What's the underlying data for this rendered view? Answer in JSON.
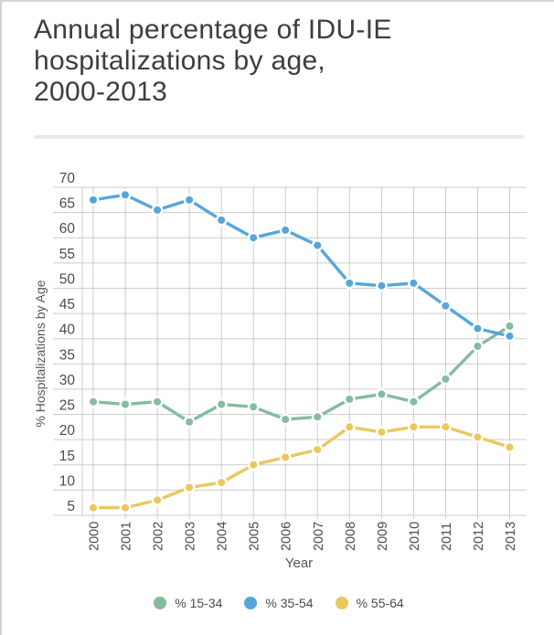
{
  "page": {
    "title_line1": "Annual percentage of IDU-IE",
    "title_line2": "hospitalizations by age,",
    "title_line3": "2000-2013"
  },
  "chart_data": {
    "type": "line",
    "title": "Annual percentage of IDU-IE hospitalizations by age, 2000-2013",
    "x": [
      2000,
      2001,
      2002,
      2003,
      2004,
      2005,
      2006,
      2007,
      2008,
      2009,
      2010,
      2011,
      2012,
      2013
    ],
    "series": [
      {
        "name": "% 15-34",
        "color": "#83BD9E",
        "values": [
          27.5,
          27,
          27.5,
          23.5,
          27,
          26.5,
          24,
          24.5,
          28,
          29,
          27.5,
          32,
          38.5,
          42.5
        ]
      },
      {
        "name": "% 35-54",
        "color": "#56A6DB",
        "values": [
          67.5,
          68.5,
          65.5,
          67.5,
          63.5,
          60,
          61.5,
          58.5,
          51,
          50.5,
          51,
          46.5,
          42,
          40.5
        ]
      },
      {
        "name": "% 55-64",
        "color": "#EBC75F",
        "values": [
          6.5,
          6.5,
          8,
          10.5,
          11.5,
          15,
          16.5,
          18,
          22.5,
          21.5,
          22.5,
          22.5,
          20.5,
          18.5
        ]
      }
    ],
    "xlabel": "Year",
    "ylabel": "% Hospitalizations by Age",
    "yticks": [
      5,
      10,
      15,
      20,
      25,
      30,
      35,
      40,
      45,
      50,
      55,
      60,
      65,
      70
    ],
    "ylim": [
      5,
      70
    ],
    "grid": true,
    "legend_position": "bottom",
    "gridline_color": "#cccccc",
    "tick_label_color": "#4b4b4b"
  }
}
